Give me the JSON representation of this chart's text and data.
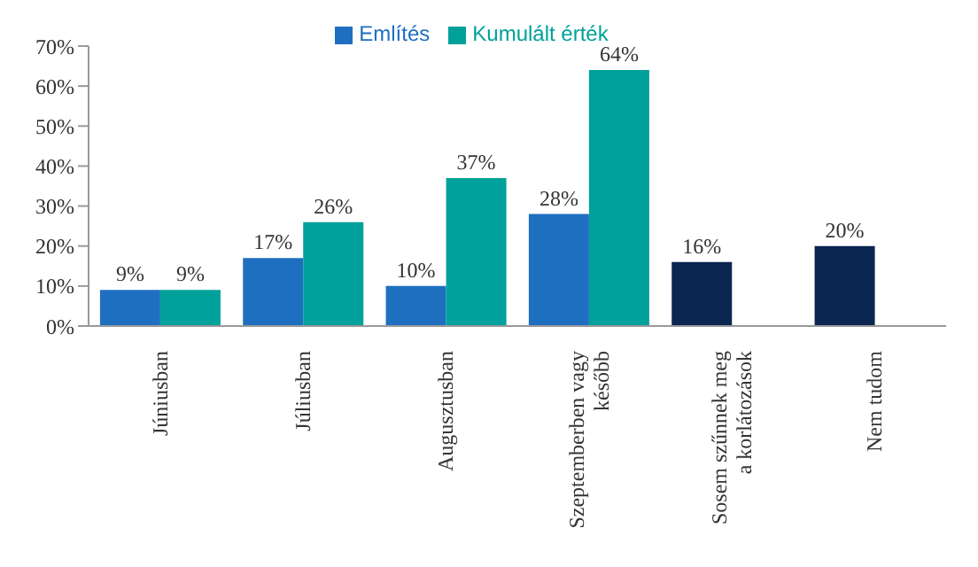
{
  "chart_data": {
    "type": "bar",
    "categories": [
      "Júniusban",
      "Júliusban",
      "Augusztusban",
      "Szeptemberben vagy később",
      "Sosem szűnnek meg a korlátozások",
      "Nem tudom"
    ],
    "series": [
      {
        "name": "Említés",
        "color": "#1f6fc0",
        "colors": [
          "#1f6fc0",
          "#1f6fc0",
          "#1f6fc0",
          "#1f6fc0",
          "#0b2650",
          "#0b2650"
        ],
        "values": [
          9,
          17,
          10,
          28,
          16,
          20
        ],
        "value_labels": [
          "9%",
          "17%",
          "10%",
          "28%",
          "16%",
          "20%"
        ]
      },
      {
        "name": "Kumulált érték",
        "color": "#00a19a",
        "values": [
          9,
          26,
          37,
          64,
          null,
          null
        ],
        "value_labels": [
          "9%",
          "26%",
          "37%",
          "64%",
          null,
          null
        ]
      }
    ],
    "ylim": [
      0,
      70
    ],
    "yticks": [
      {
        "value": 0,
        "label": "0%"
      },
      {
        "value": 10,
        "label": "10%"
      },
      {
        "value": 20,
        "label": "20%"
      },
      {
        "value": 30,
        "label": "30%"
      },
      {
        "value": 40,
        "label": "40%"
      },
      {
        "value": 50,
        "label": "50%"
      },
      {
        "value": 60,
        "label": "60%"
      },
      {
        "value": 70,
        "label": "70%"
      }
    ],
    "grid": false,
    "legend": "top"
  }
}
